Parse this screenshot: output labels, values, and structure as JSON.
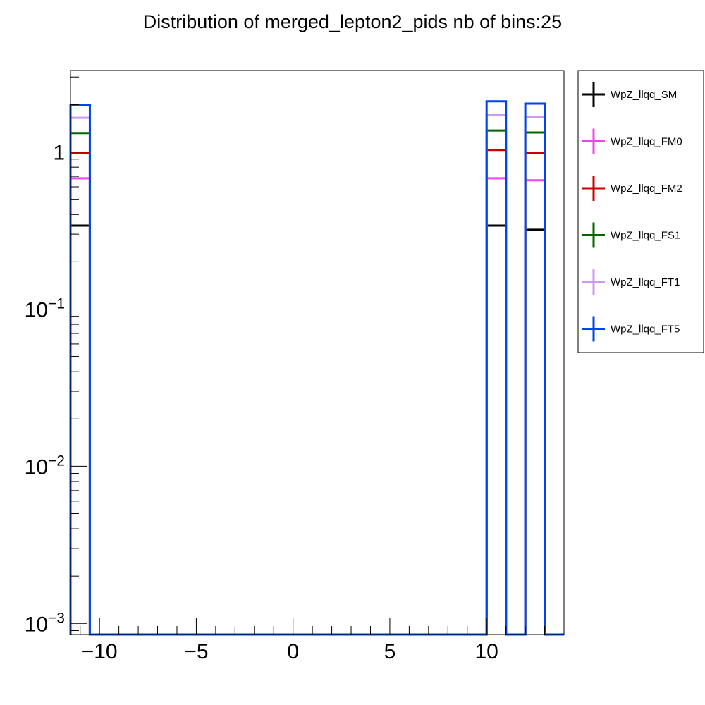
{
  "chart_data": {
    "type": "histogram",
    "title": "Distribution of merged_lepton2_pids nb of bins:25",
    "xlabel": "",
    "ylabel": "",
    "xlim": [
      -11.5,
      14.0
    ],
    "ylim": [
      0.00085,
      3.3
    ],
    "y_scale": "log",
    "grid": false,
    "legend_position": "right, outside plot",
    "x_ticks": [
      -10,
      -5,
      0,
      5,
      10
    ],
    "x_tick_labels": [
      "−10",
      "−5",
      "0",
      "5",
      "10"
    ],
    "y_ticks": [
      {
        "value": 1,
        "base": "1",
        "exp": ""
      },
      {
        "value": 0.1,
        "base": "10",
        "exp": "−1"
      },
      {
        "value": 0.01,
        "base": "10",
        "exp": "−2"
      },
      {
        "value": 0.001,
        "base": "10",
        "exp": "−3"
      }
    ],
    "bins": [
      {
        "x0": -11.5,
        "x1": -10.5
      },
      {
        "x0": 10.0,
        "x1": 11.0
      },
      {
        "x0": 12.0,
        "x1": 13.0
      }
    ],
    "series": [
      {
        "name": "WpZ_llqq_SM",
        "color": "#000000",
        "values": [
          0.34,
          0.34,
          0.32
        ]
      },
      {
        "name": "WpZ_llqq_FM0",
        "color": "#ee44ee",
        "values": [
          0.68,
          0.68,
          0.66
        ]
      },
      {
        "name": "WpZ_llqq_FM2",
        "color": "#cc0000",
        "values": [
          0.98,
          1.03,
          0.98
        ]
      },
      {
        "name": "WpZ_llqq_FS1",
        "color": "#006600",
        "values": [
          1.32,
          1.37,
          1.33
        ]
      },
      {
        "name": "WpZ_llqq_FT1",
        "color": "#cc99ee",
        "values": [
          1.65,
          1.72,
          1.67
        ]
      },
      {
        "name": "WpZ_llqq_FT5",
        "color": "#0044ee",
        "values": [
          1.98,
          2.1,
          2.03
        ]
      }
    ]
  }
}
